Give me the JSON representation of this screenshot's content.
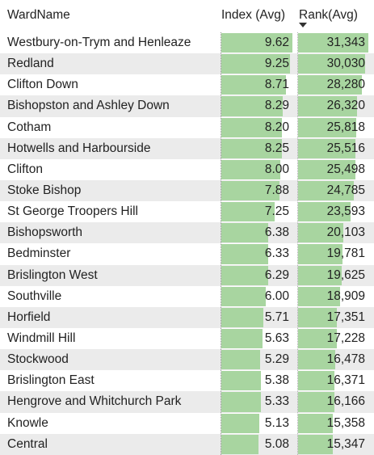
{
  "table": {
    "headers": {
      "ward": "WardName",
      "index": "Index (Avg)",
      "rank": "Rank(Avg)"
    },
    "sort_icon": "sort-descending-icon",
    "bar_color": "#a8d5a0",
    "index_max": 9.62,
    "rank_max": 31343,
    "rows": [
      {
        "ward": "Westbury-on-Trym and Henleaze",
        "index": "9.62",
        "rank": "31,343"
      },
      {
        "ward": "Redland",
        "index": "9.25",
        "rank": "30,030"
      },
      {
        "ward": "Clifton Down",
        "index": "8.71",
        "rank": "28,280"
      },
      {
        "ward": "Bishopston and Ashley Down",
        "index": "8.29",
        "rank": "26,320"
      },
      {
        "ward": "Cotham",
        "index": "8.20",
        "rank": "25,818"
      },
      {
        "ward": "Hotwells and Harbourside",
        "index": "8.25",
        "rank": "25,516"
      },
      {
        "ward": "Clifton",
        "index": "8.00",
        "rank": "25,498"
      },
      {
        "ward": "Stoke Bishop",
        "index": "7.88",
        "rank": "24,785"
      },
      {
        "ward": "St George Troopers Hill",
        "index": "7.25",
        "rank": "23,593"
      },
      {
        "ward": "Bishopsworth",
        "index": "6.38",
        "rank": "20,103"
      },
      {
        "ward": "Bedminster",
        "index": "6.33",
        "rank": "19,781"
      },
      {
        "ward": "Brislington West",
        "index": "6.29",
        "rank": "19,625"
      },
      {
        "ward": "Southville",
        "index": "6.00",
        "rank": "18,909"
      },
      {
        "ward": "Horfield",
        "index": "5.71",
        "rank": "17,351"
      },
      {
        "ward": "Windmill Hill",
        "index": "5.63",
        "rank": "17,228"
      },
      {
        "ward": "Stockwood",
        "index": "5.29",
        "rank": "16,478"
      },
      {
        "ward": "Brislington East",
        "index": "5.38",
        "rank": "16,371"
      },
      {
        "ward": "Hengrove and Whitchurch Park",
        "index": "5.33",
        "rank": "16,166"
      },
      {
        "ward": "Knowle",
        "index": "5.13",
        "rank": "15,358"
      },
      {
        "ward": "Central",
        "index": "5.08",
        "rank": "15,347"
      }
    ]
  }
}
